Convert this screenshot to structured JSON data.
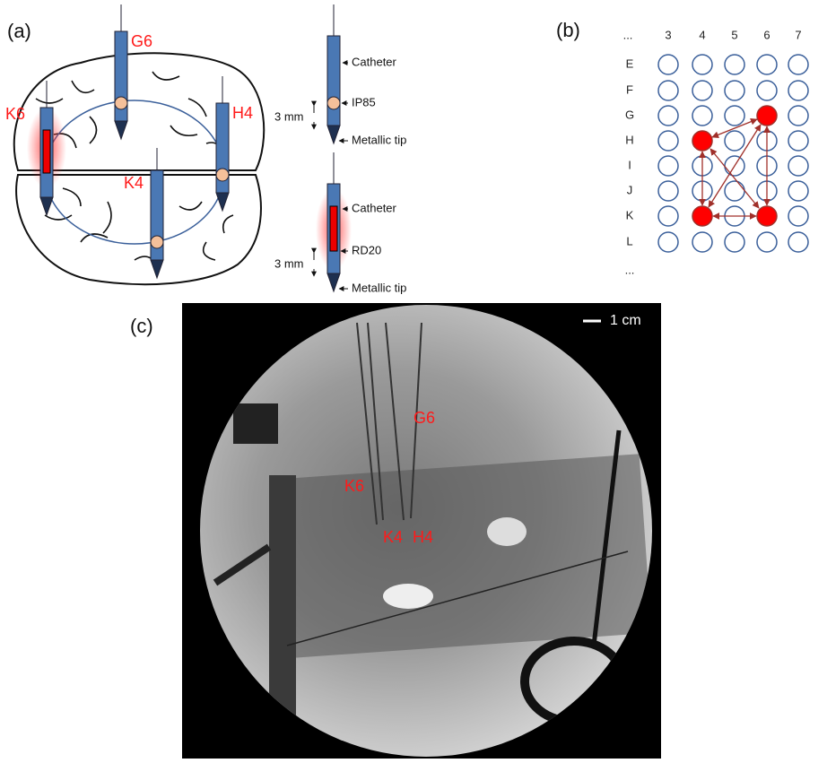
{
  "panel_a": {
    "label": "(a)",
    "electrodes": [
      "G6",
      "K6",
      "H4",
      "K4"
    ],
    "diagrams": [
      {
        "labels": [
          "Catheter",
          "IP85",
          "Metallic tip"
        ],
        "spacing": "3 mm"
      },
      {
        "labels": [
          "Catheter",
          "RD20",
          "Metallic tip"
        ],
        "spacing": "3 mm"
      }
    ]
  },
  "panel_b": {
    "label": "(b)",
    "columns": [
      "...",
      "3",
      "4",
      "5",
      "6",
      "7"
    ],
    "rows": [
      "E",
      "F",
      "G",
      "H",
      "I",
      "J",
      "K",
      "L",
      "..."
    ]
  },
  "panel_c": {
    "label": "(c)",
    "scale": "1 cm",
    "electrodes": [
      "G6",
      "K6",
      "K4",
      "H4"
    ]
  }
}
